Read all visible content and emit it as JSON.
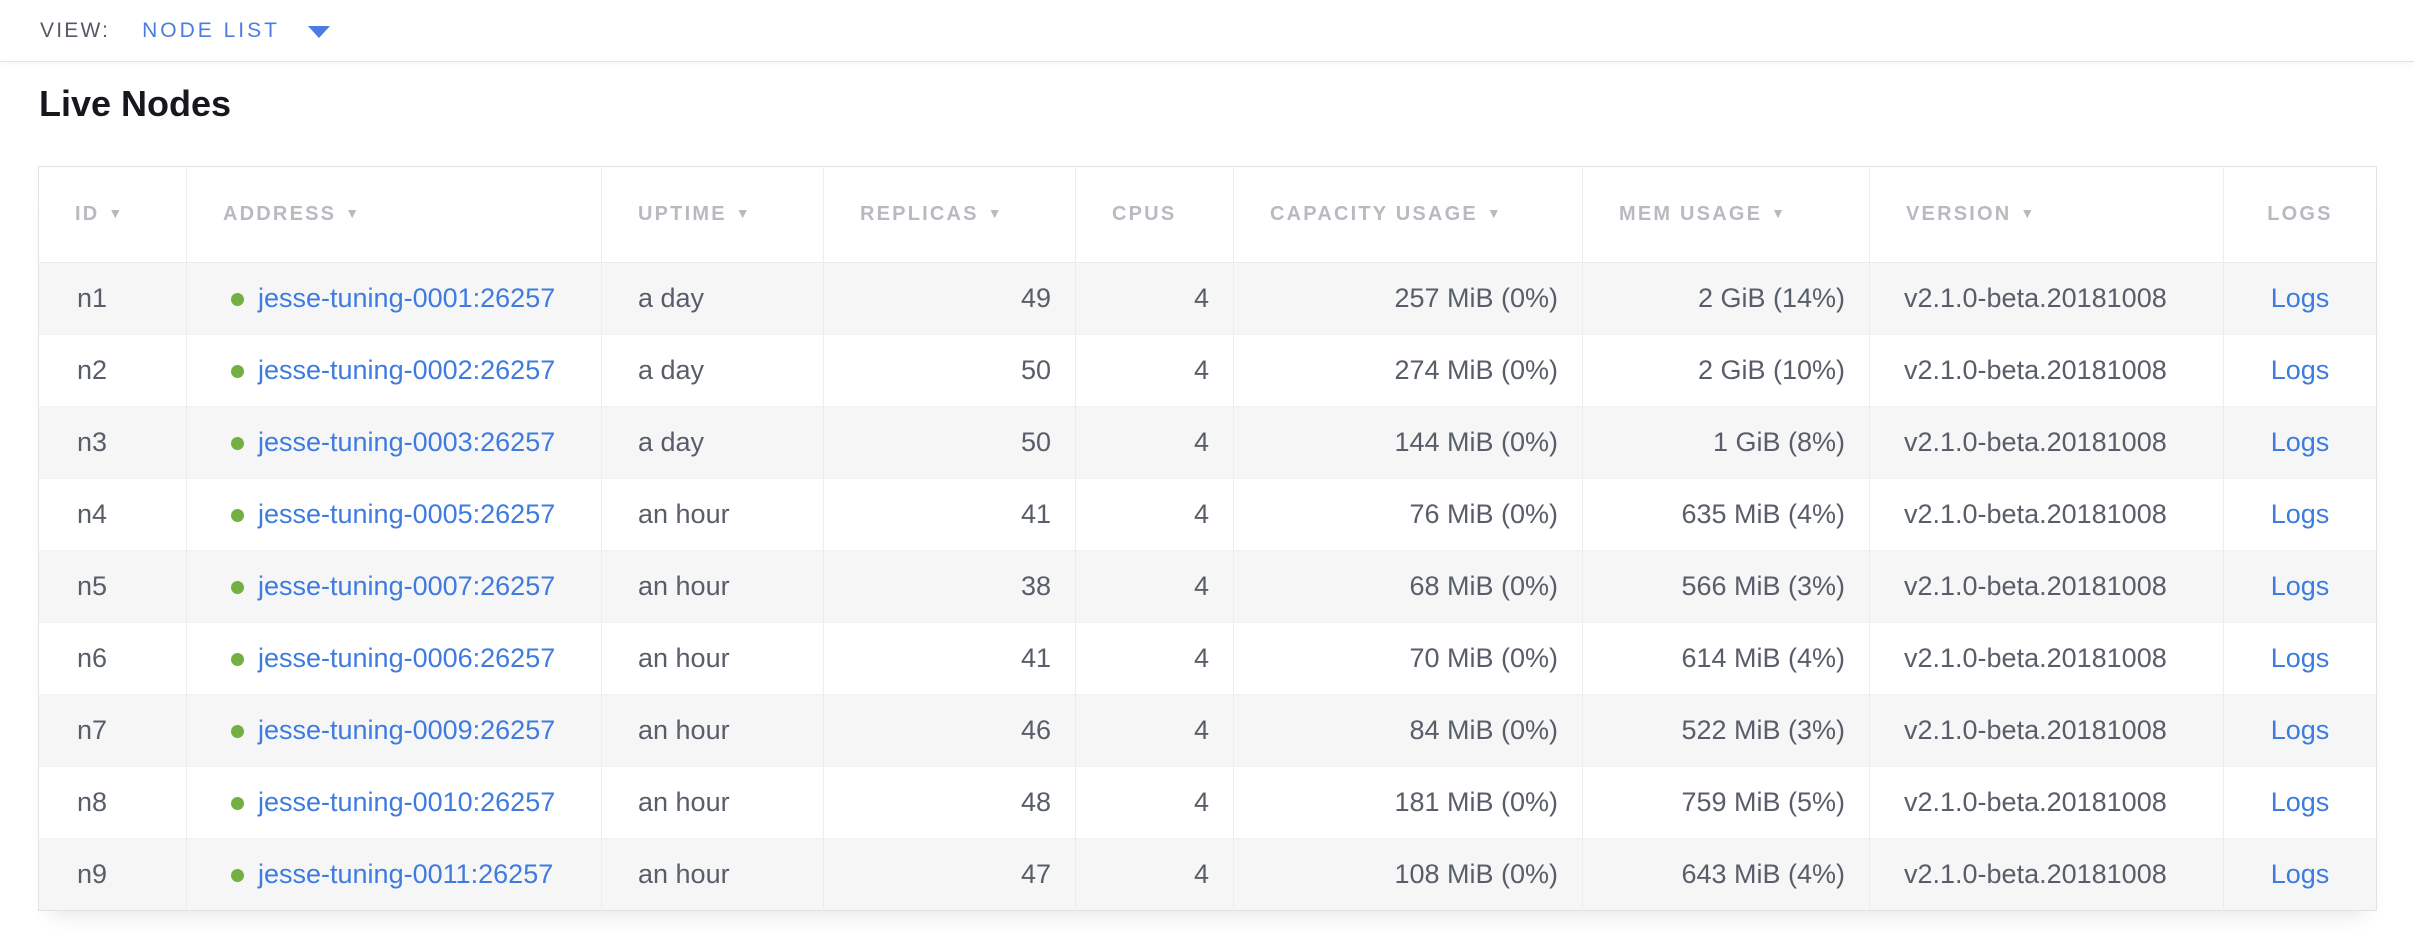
{
  "view_bar": {
    "label": "VIEW:",
    "selected": "NODE LIST"
  },
  "page": {
    "title": "Live Nodes"
  },
  "icons": {
    "sort_desc": "▼"
  },
  "colors": {
    "link_blue": "#3e7be0",
    "dropdown_blue": "#4a7ce2",
    "live_green": "#72b043",
    "header_gray": "#b8bac0"
  },
  "table": {
    "columns": [
      {
        "key": "id",
        "label": "ID",
        "sortable": true,
        "align": "left"
      },
      {
        "key": "address",
        "label": "ADDRESS",
        "sortable": true,
        "align": "left"
      },
      {
        "key": "uptime",
        "label": "UPTIME",
        "sortable": true,
        "align": "left"
      },
      {
        "key": "replicas",
        "label": "REPLICAS",
        "sortable": true,
        "align": "right"
      },
      {
        "key": "cpus",
        "label": "CPUS",
        "sortable": false,
        "align": "right"
      },
      {
        "key": "capacity",
        "label": "CAPACITY USAGE",
        "sortable": true,
        "align": "right"
      },
      {
        "key": "mem",
        "label": "MEM USAGE",
        "sortable": true,
        "align": "right"
      },
      {
        "key": "version",
        "label": "VERSION",
        "sortable": true,
        "align": "left"
      },
      {
        "key": "logs",
        "label": "LOGS",
        "sortable": false,
        "align": "center"
      }
    ],
    "rows": [
      {
        "id": "n1",
        "address": "jesse-tuning-0001:26257",
        "status": "live",
        "uptime": "a day",
        "replicas": "49",
        "cpus": "4",
        "capacity": "257 MiB (0%)",
        "mem": "2 GiB (14%)",
        "version": "v2.1.0-beta.20181008",
        "logs": "Logs"
      },
      {
        "id": "n2",
        "address": "jesse-tuning-0002:26257",
        "status": "live",
        "uptime": "a day",
        "replicas": "50",
        "cpus": "4",
        "capacity": "274 MiB (0%)",
        "mem": "2 GiB (10%)",
        "version": "v2.1.0-beta.20181008",
        "logs": "Logs"
      },
      {
        "id": "n3",
        "address": "jesse-tuning-0003:26257",
        "status": "live",
        "uptime": "a day",
        "replicas": "50",
        "cpus": "4",
        "capacity": "144 MiB (0%)",
        "mem": "1 GiB (8%)",
        "version": "v2.1.0-beta.20181008",
        "logs": "Logs"
      },
      {
        "id": "n4",
        "address": "jesse-tuning-0005:26257",
        "status": "live",
        "uptime": "an hour",
        "replicas": "41",
        "cpus": "4",
        "capacity": "76 MiB (0%)",
        "mem": "635 MiB (4%)",
        "version": "v2.1.0-beta.20181008",
        "logs": "Logs"
      },
      {
        "id": "n5",
        "address": "jesse-tuning-0007:26257",
        "status": "live",
        "uptime": "an hour",
        "replicas": "38",
        "cpus": "4",
        "capacity": "68 MiB (0%)",
        "mem": "566 MiB (3%)",
        "version": "v2.1.0-beta.20181008",
        "logs": "Logs"
      },
      {
        "id": "n6",
        "address": "jesse-tuning-0006:26257",
        "status": "live",
        "uptime": "an hour",
        "replicas": "41",
        "cpus": "4",
        "capacity": "70 MiB (0%)",
        "mem": "614 MiB (4%)",
        "version": "v2.1.0-beta.20181008",
        "logs": "Logs"
      },
      {
        "id": "n7",
        "address": "jesse-tuning-0009:26257",
        "status": "live",
        "uptime": "an hour",
        "replicas": "46",
        "cpus": "4",
        "capacity": "84 MiB (0%)",
        "mem": "522 MiB (3%)",
        "version": "v2.1.0-beta.20181008",
        "logs": "Logs"
      },
      {
        "id": "n8",
        "address": "jesse-tuning-0010:26257",
        "status": "live",
        "uptime": "an hour",
        "replicas": "48",
        "cpus": "4",
        "capacity": "181 MiB (0%)",
        "mem": "759 MiB (5%)",
        "version": "v2.1.0-beta.20181008",
        "logs": "Logs"
      },
      {
        "id": "n9",
        "address": "jesse-tuning-0011:26257",
        "status": "live",
        "uptime": "an hour",
        "replicas": "47",
        "cpus": "4",
        "capacity": "108 MiB (0%)",
        "mem": "643 MiB (4%)",
        "version": "v2.1.0-beta.20181008",
        "logs": "Logs"
      }
    ]
  }
}
